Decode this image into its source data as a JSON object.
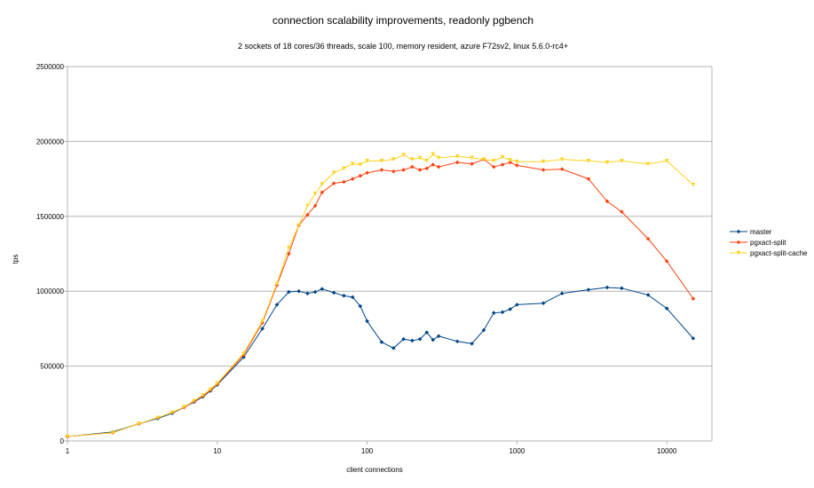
{
  "chart_data": {
    "type": "line",
    "title": "connection scalability improvements, readonly pgbench",
    "subtitle": "2 sockets of 18 cores/36 threads, scale 100, memory resident, azure F72sv2, linux 5.6.0-rc4+",
    "xlabel": "client connections",
    "ylabel": "tps",
    "xscale": "log",
    "xlim": [
      1,
      20000
    ],
    "ylim": [
      0,
      2500000
    ],
    "xticks": [
      "1",
      "10",
      "100",
      "1000",
      "10000"
    ],
    "xtick_values": [
      1,
      10,
      100,
      1000,
      10000
    ],
    "yticks": [
      "0",
      "500000",
      "1000000",
      "1500000",
      "2000000",
      "2500000"
    ],
    "ytick_values": [
      0,
      500000,
      1000000,
      1500000,
      2000000,
      2500000
    ],
    "grid": "horizontal",
    "legend_position": "right",
    "x": [
      1,
      2,
      3,
      4,
      5,
      6,
      7,
      8,
      9,
      10,
      15,
      20,
      25,
      30,
      35,
      40,
      45,
      50,
      60,
      70,
      80,
      90,
      100,
      125,
      150,
      175,
      200,
      225,
      250,
      275,
      300,
      400,
      500,
      600,
      700,
      800,
      900,
      1000,
      1500,
      2000,
      3000,
      4000,
      5000,
      7500,
      10000,
      15000
    ],
    "series": [
      {
        "name": "master",
        "color": "#004586",
        "marker": "diamond",
        "values": [
          30000,
          60000,
          115000,
          150000,
          185000,
          225000,
          260000,
          295000,
          335000,
          375000,
          560000,
          750000,
          910000,
          995000,
          1000000,
          985000,
          995000,
          1015000,
          990000,
          970000,
          960000,
          900000,
          800000,
          660000,
          620000,
          680000,
          670000,
          680000,
          725000,
          675000,
          700000,
          665000,
          650000,
          740000,
          855000,
          860000,
          880000,
          910000,
          920000,
          985000,
          1010000,
          1025000,
          1020000,
          975000,
          885000,
          685000
        ]
      },
      {
        "name": "pgxact-split",
        "color": "#ff420e",
        "marker": "diamond",
        "values": [
          30000,
          55000,
          115000,
          155000,
          190000,
          225000,
          265000,
          300000,
          340000,
          380000,
          575000,
          790000,
          1040000,
          1250000,
          1440000,
          1510000,
          1570000,
          1660000,
          1720000,
          1730000,
          1750000,
          1770000,
          1790000,
          1810000,
          1800000,
          1810000,
          1830000,
          1810000,
          1820000,
          1845000,
          1830000,
          1860000,
          1850000,
          1880000,
          1830000,
          1845000,
          1860000,
          1840000,
          1810000,
          1815000,
          1750000,
          1600000,
          1530000,
          1350000,
          1200000,
          950000
        ]
      },
      {
        "name": "pgxact-split-cache",
        "color": "#ffd320",
        "marker": "triangle-down",
        "values": [
          30000,
          55000,
          115000,
          155000,
          190000,
          228000,
          268000,
          305000,
          345000,
          385000,
          585000,
          800000,
          1050000,
          1290000,
          1440000,
          1570000,
          1650000,
          1715000,
          1790000,
          1820000,
          1850000,
          1845000,
          1870000,
          1870000,
          1880000,
          1910000,
          1880000,
          1890000,
          1870000,
          1915000,
          1890000,
          1900000,
          1890000,
          1880000,
          1870000,
          1895000,
          1875000,
          1865000,
          1865000,
          1880000,
          1870000,
          1860000,
          1870000,
          1850000,
          1870000,
          1710000
        ]
      }
    ]
  }
}
